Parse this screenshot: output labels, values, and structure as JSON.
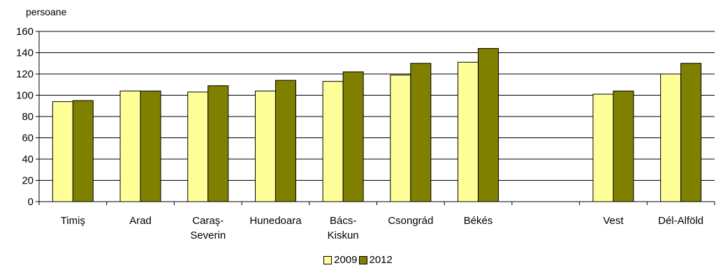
{
  "chart_data": {
    "type": "bar",
    "ylabel": "persoane",
    "ylim": [
      0,
      160
    ],
    "ytick_step": 20,
    "grid": true,
    "legend_position": "bottom",
    "categories": [
      [
        "Timiş"
      ],
      [
        "Arad"
      ],
      [
        "Caraş-",
        "Severin"
      ],
      [
        "Hunedoara"
      ],
      [
        "Bács-",
        "Kiskun"
      ],
      [
        "Csongrád"
      ],
      [
        "Békés"
      ],
      [],
      [
        "Vest"
      ],
      [
        "Dél-Alföld"
      ]
    ],
    "series": [
      {
        "name": "2009",
        "color": "#FFFF99",
        "values": [
          94,
          104,
          103,
          104,
          113,
          119,
          131,
          null,
          101,
          120
        ]
      },
      {
        "name": "2012",
        "color": "#808000",
        "values": [
          95,
          104,
          109,
          114,
          122,
          130,
          144,
          null,
          104,
          130
        ]
      }
    ]
  }
}
